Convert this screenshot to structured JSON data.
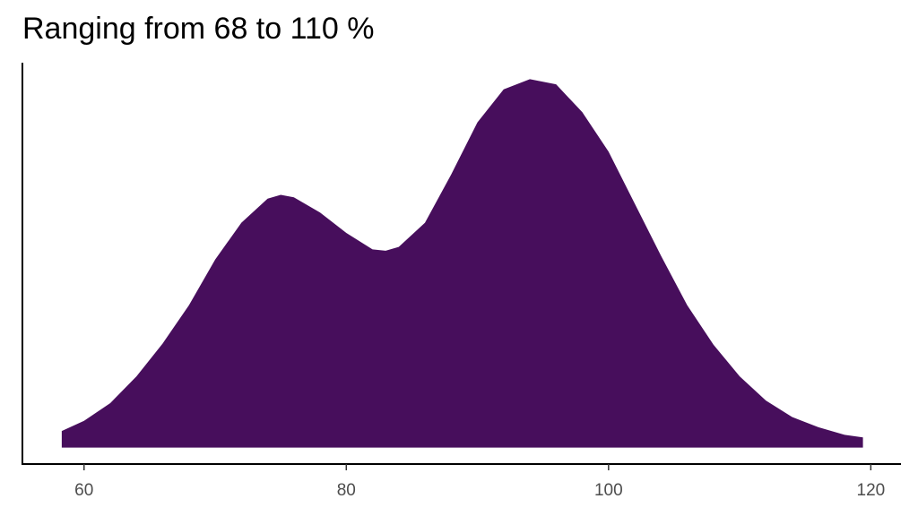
{
  "chart_data": {
    "type": "density",
    "title": "Ranging from 68 to 110 %",
    "color": "#470e5c",
    "x": [
      58.3,
      60,
      62,
      64,
      66,
      68,
      70,
      72,
      74,
      75,
      76,
      78,
      80,
      82,
      83,
      84,
      86,
      88,
      90,
      92,
      94,
      96,
      98,
      100,
      102,
      104,
      106,
      108,
      110,
      112,
      114,
      116,
      118,
      119.4
    ],
    "values": [
      0.0013,
      0.0021,
      0.0035,
      0.0056,
      0.0082,
      0.0112,
      0.0148,
      0.0177,
      0.0196,
      0.0199,
      0.0197,
      0.0185,
      0.0169,
      0.0156,
      0.0155,
      0.0158,
      0.0177,
      0.0215,
      0.0256,
      0.0282,
      0.029,
      0.0286,
      0.0264,
      0.0233,
      0.0192,
      0.0151,
      0.0112,
      0.0081,
      0.0056,
      0.0037,
      0.0024,
      0.0016,
      0.001,
      0.0008
    ],
    "xlim": [
      55.3,
      122.3
    ],
    "xticks": [
      60,
      80,
      100,
      120
    ],
    "ylim": [
      -0.0013,
      0.0303
    ]
  }
}
